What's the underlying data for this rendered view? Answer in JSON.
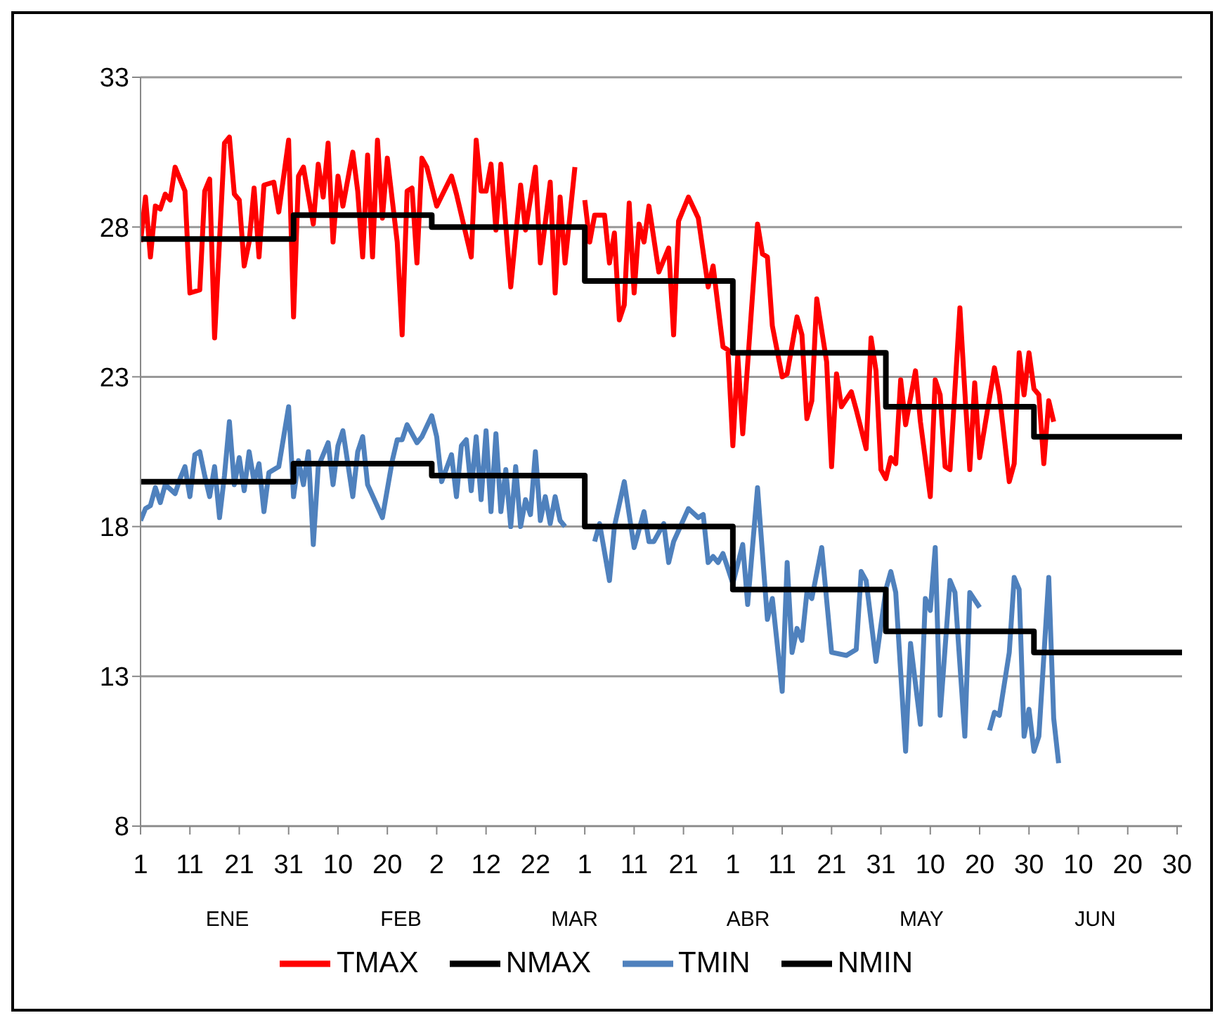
{
  "chart_data": {
    "type": "line",
    "xlim": [
      "--01-01",
      "--07-31"
    ],
    "xticks": [
      {
        "value": "--01-01",
        "label": "1"
      },
      {
        "value": "--01-11",
        "label": "11"
      },
      {
        "value": "--01-21",
        "label": "21"
      },
      {
        "value": "--01-31",
        "label": "31"
      },
      {
        "value": "--02-10",
        "label": "10"
      },
      {
        "value": "--02-20",
        "label": "20"
      },
      {
        "value": "--03-02",
        "label": "2"
      },
      {
        "value": "--03-12",
        "label": "12"
      },
      {
        "value": "--03-22",
        "label": "22"
      },
      {
        "value": "--04-01",
        "label": "1"
      },
      {
        "value": "--04-11",
        "label": "11"
      },
      {
        "value": "--04-21",
        "label": "21"
      },
      {
        "value": "--05-01",
        "label": "1"
      },
      {
        "value": "--05-11",
        "label": "11"
      },
      {
        "value": "--05-21",
        "label": "21"
      },
      {
        "value": "--05-31",
        "label": "31"
      },
      {
        "value": "--06-10",
        "label": "10"
      },
      {
        "value": "--06-20",
        "label": "20"
      },
      {
        "value": "--06-30",
        "label": "30"
      },
      {
        "value": "--07-10",
        "label": "10"
      },
      {
        "value": "--07-20",
        "label": "20"
      },
      {
        "value": "--07-30",
        "label": "30"
      }
    ],
    "ylim": [
      8,
      33
    ],
    "yticks": [
      8,
      13,
      18,
      23,
      28,
      33
    ],
    "grid": "y",
    "legend": "bottom",
    "annotations": [
      "ENE",
      "FEB",
      "MAR",
      "ABR",
      "MAY",
      "JUN"
    ],
    "series": [
      {
        "name": "TMAX",
        "color": "#ff0000",
        "x": [
          "--01-01",
          "--01-02",
          "--01-03",
          "--01-04",
          "--01-05",
          "--01-06",
          "--01-07",
          "--01-08",
          "--01-10",
          "--01-11",
          "--01-13",
          "--01-14",
          "--01-15",
          "--01-16",
          "--01-18",
          "--01-19",
          "--01-20",
          "--01-21",
          "--01-22",
          "--01-23",
          "--01-24",
          "--01-25",
          "--01-26",
          "--01-28",
          "--01-29",
          "--01-31",
          "--02-01",
          "--02-02",
          "--02-03",
          "--02-05",
          "--02-06",
          "--02-07",
          "--02-08",
          "--02-09",
          "--02-10",
          "--02-11",
          "--02-13",
          "--02-14",
          "--02-15",
          "--02-16",
          "--02-17",
          "--02-18",
          "--02-19",
          "--02-20",
          "--02-22",
          "--02-23",
          "--02-24",
          "--02-25",
          "--02-26",
          "--02-27",
          "--02-28",
          "--03-02",
          "--03-05",
          "--03-06",
          "--03-09",
          "--03-10",
          "--03-11",
          "--03-12",
          "--03-13",
          "--03-14",
          "--03-15",
          "--03-17",
          "--03-19",
          "--03-20",
          "--03-22",
          "--03-23",
          "--03-25",
          "--03-26",
          "--03-27",
          "--03-28",
          "--03-30",
          "--03-31",
          "--04-01",
          "--04-02",
          "--04-03",
          "--04-05",
          "--04-06",
          "--04-07",
          "--04-08",
          "--04-09",
          "--04-10",
          "--04-11",
          "--04-12",
          "--04-13",
          "--04-14",
          "--04-16",
          "--04-18",
          "--04-19",
          "--04-20",
          "--04-22",
          "--04-24",
          "--04-26",
          "--04-27",
          "--04-29",
          "--04-30",
          "--05-01",
          "--05-02",
          "--05-03",
          "--05-06",
          "--05-07",
          "--05-08",
          "--05-09",
          "--05-11",
          "--05-12",
          "--05-14",
          "--05-15",
          "--05-16",
          "--05-17",
          "--05-18",
          "--05-20",
          "--05-21",
          "--05-22",
          "--05-23",
          "--05-25",
          "--05-26",
          "--05-28",
          "--05-29",
          "--05-30",
          "--05-31",
          "--06-01",
          "--06-02",
          "--06-03",
          "--06-04",
          "--06-05",
          "--06-07",
          "--06-08",
          "--06-10",
          "--06-11",
          "--06-12",
          "--06-13",
          "--06-14",
          "--06-16",
          "--06-17",
          "--06-18",
          "--06-19",
          "--06-20",
          "--06-23",
          "--06-24",
          "--06-26",
          "--06-27",
          "--06-28",
          "--06-29",
          "--06-30",
          "--07-01",
          "--07-02",
          "--07-03",
          "--07-04",
          "--07-05"
        ],
        "values": [
          27.5,
          29.0,
          27.0,
          28.7,
          28.6,
          29.1,
          28.9,
          30.0,
          29.2,
          25.8,
          25.9,
          29.2,
          29.6,
          24.3,
          30.8,
          31.0,
          29.1,
          28.9,
          26.7,
          27.5,
          29.3,
          27.0,
          29.4,
          29.5,
          28.5,
          30.9,
          25.0,
          29.7,
          30.0,
          28.1,
          30.1,
          29.0,
          30.8,
          27.5,
          29.7,
          28.7,
          30.5,
          29.2,
          27.0,
          30.4,
          27.0,
          30.9,
          28.3,
          30.3,
          27.5,
          24.4,
          29.2,
          29.3,
          26.8,
          30.3,
          30.0,
          28.7,
          29.7,
          29.1,
          27.0,
          30.9,
          29.2,
          29.2,
          30.1,
          27.9,
          30.1,
          26.0,
          29.4,
          27.9,
          30.0,
          26.8,
          29.5,
          25.8,
          29.0,
          26.8,
          30.0,
          null,
          28.9,
          27.5,
          28.4,
          28.4,
          26.8,
          27.8,
          24.9,
          25.4,
          28.8,
          25.8,
          28.1,
          27.5,
          28.7,
          26.5,
          27.3,
          24.4,
          28.2,
          29.0,
          28.3,
          26.0,
          26.7,
          24.0,
          23.9,
          20.7,
          23.7,
          21.1,
          28.1,
          27.1,
          27.0,
          24.7,
          23.0,
          23.1,
          25.0,
          24.4,
          21.6,
          22.2,
          25.6,
          23.5,
          20.0,
          23.1,
          22.0,
          22.5,
          21.9,
          20.6,
          24.3,
          23.2,
          19.9,
          19.6,
          20.3,
          20.1,
          22.9,
          21.4,
          23.2,
          21.5,
          19.0,
          22.9,
          22.4,
          20.0,
          19.9,
          25.3,
          22.5,
          19.9,
          22.8,
          20.3,
          23.3,
          22.4,
          19.5,
          20.1,
          23.8,
          22.4,
          23.8,
          22.6,
          22.4,
          20.1,
          22.2,
          21.5
        ]
      },
      {
        "name": "NMAX",
        "color": "#000000",
        "type": "step",
        "x": [
          "--01-01",
          "--02-01",
          "--03-01",
          "--04-01",
          "--05-01",
          "--06-01",
          "--07-01",
          "--07-31"
        ],
        "values": [
          27.6,
          28.4,
          28.0,
          26.2,
          23.8,
          22.0,
          21.0,
          21.0
        ]
      },
      {
        "name": "TMIN",
        "color": "#4f81bd",
        "x": [
          "--01-01",
          "--01-02",
          "--01-03",
          "--01-04",
          "--01-05",
          "--01-06",
          "--01-08",
          "--01-09",
          "--01-10",
          "--01-11",
          "--01-12",
          "--01-13",
          "--01-14",
          "--01-15",
          "--01-16",
          "--01-17",
          "--01-18",
          "--01-19",
          "--01-20",
          "--01-21",
          "--01-22",
          "--01-23",
          "--01-24",
          "--01-25",
          "--01-26",
          "--01-27",
          "--01-29",
          "--01-30",
          "--01-31",
          "--02-01",
          "--02-02",
          "--02-03",
          "--02-04",
          "--02-05",
          "--02-06",
          "--02-08",
          "--02-09",
          "--02-10",
          "--02-11",
          "--02-13",
          "--02-14",
          "--02-15",
          "--02-16",
          "--02-19",
          "--02-21",
          "--02-22",
          "--02-23",
          "--02-24",
          "--02-26",
          "--02-27",
          "--03-01",
          "--03-02",
          "--03-03",
          "--03-05",
          "--03-06",
          "--03-07",
          "--03-08",
          "--03-09",
          "--03-10",
          "--03-11",
          "--03-12",
          "--03-13",
          "--03-14",
          "--03-15",
          "--03-16",
          "--03-17",
          "--03-18",
          "--03-19",
          "--03-20",
          "--03-21",
          "--03-22",
          "--03-23",
          "--03-24",
          "--03-25",
          "--03-26",
          "--03-27",
          "--03-28",
          "--03-31",
          "--04-03",
          "--04-04",
          "--04-06",
          "--04-07",
          "--04-09",
          "--04-10",
          "--04-11",
          "--04-13",
          "--04-14",
          "--04-15",
          "--04-17",
          "--04-18",
          "--04-19",
          "--04-22",
          "--04-24",
          "--04-25",
          "--04-26",
          "--04-27",
          "--04-28",
          "--04-29",
          "--05-01",
          "--05-03",
          "--05-04",
          "--05-06",
          "--05-08",
          "--05-09",
          "--05-11",
          "--05-12",
          "--05-13",
          "--05-14",
          "--05-15",
          "--05-16",
          "--05-17",
          "--05-19",
          "--05-21",
          "--05-24",
          "--05-26",
          "--05-27",
          "--05-28",
          "--05-30",
          "--06-01",
          "--06-02",
          "--06-03",
          "--06-05",
          "--06-06",
          "--06-08",
          "--06-09",
          "--06-10",
          "--06-11",
          "--06-12",
          "--06-14",
          "--06-15",
          "--06-17",
          "--06-18",
          "--06-20",
          "--06-21",
          "--06-22",
          "--06-23",
          "--06-24",
          "--06-26",
          "--06-27",
          "--06-28",
          "--06-29",
          "--06-30",
          "--07-01",
          "--07-02",
          "--07-04",
          "--07-05",
          "--07-06"
        ],
        "values": [
          18.2,
          18.6,
          18.7,
          19.3,
          18.8,
          19.4,
          19.1,
          19.6,
          20.0,
          19.0,
          20.4,
          20.5,
          19.7,
          19.0,
          20.0,
          18.3,
          19.7,
          21.5,
          19.4,
          20.3,
          19.2,
          20.5,
          19.5,
          20.1,
          18.5,
          19.8,
          20.0,
          21.0,
          22.0,
          19.0,
          20.2,
          19.4,
          20.5,
          17.4,
          20.0,
          20.8,
          19.4,
          20.7,
          21.2,
          19.0,
          20.5,
          21.0,
          19.4,
          18.3,
          20.2,
          20.9,
          20.9,
          21.4,
          20.8,
          21.0,
          21.7,
          21.0,
          19.5,
          20.4,
          19.0,
          20.7,
          20.9,
          19.2,
          21.0,
          18.9,
          21.2,
          18.5,
          21.1,
          18.5,
          19.9,
          18.0,
          20.0,
          18.0,
          18.9,
          18.4,
          20.5,
          18.2,
          19.0,
          18.1,
          19.0,
          18.2,
          18.0,
          null,
          17.5,
          18.1,
          16.2,
          18.0,
          19.5,
          18.4,
          17.3,
          18.5,
          17.5,
          17.5,
          18.1,
          16.8,
          17.5,
          18.6,
          18.3,
          18.4,
          16.8,
          17.0,
          16.8,
          17.1,
          16.1,
          17.4,
          15.4,
          19.3,
          14.9,
          15.6,
          12.5,
          16.8,
          13.8,
          14.6,
          14.2,
          15.8,
          15.6,
          17.3,
          13.8,
          13.7,
          13.9,
          16.5,
          16.2,
          13.5,
          15.9,
          16.5,
          15.8,
          10.5,
          14.1,
          11.4,
          15.6,
          15.2,
          17.3,
          11.7,
          16.2,
          15.8,
          11.0,
          15.8,
          15.3,
          null,
          11.2,
          11.8,
          11.7,
          13.8,
          16.3,
          15.9,
          11.0,
          11.9,
          10.5,
          11.0,
          16.3,
          11.6,
          10.1
        ]
      },
      {
        "name": "NMIN",
        "color": "#000000",
        "type": "step",
        "x": [
          "--01-01",
          "--02-01",
          "--03-01",
          "--04-01",
          "--05-01",
          "--06-01",
          "--07-01",
          "--07-31"
        ],
        "values": [
          19.5,
          20.1,
          19.7,
          18.0,
          15.9,
          14.5,
          13.8,
          13.8
        ]
      }
    ]
  }
}
